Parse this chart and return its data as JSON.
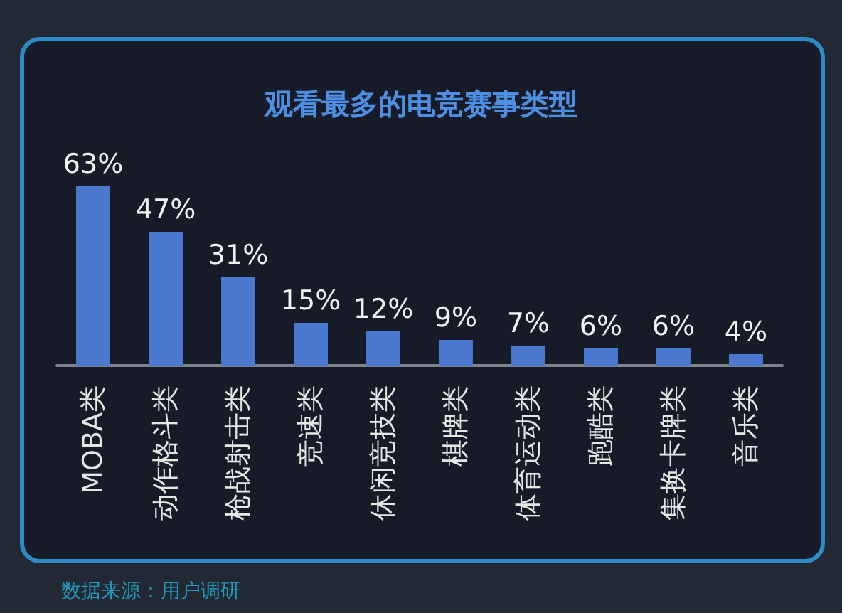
{
  "chart_data": {
    "type": "bar",
    "title": "观看最多的电竞赛事类型",
    "categories": [
      "MOBA类",
      "动作格斗类",
      "枪战射击类",
      "竞速类",
      "休闲竞技类",
      "棋牌类",
      "体育运动类",
      "跑酷类",
      "集换卡牌类",
      "音乐类"
    ],
    "values": [
      63,
      47,
      31,
      15,
      12,
      9,
      7,
      6,
      6,
      4
    ],
    "value_labels": [
      "63%",
      "47%",
      "31%",
      "15%",
      "12%",
      "9%",
      "7%",
      "6%",
      "6%",
      "4%"
    ],
    "color": "#4a78cf",
    "tick_labels": "x",
    "annotations": [
      "数据来源：用户调研"
    ]
  }
}
